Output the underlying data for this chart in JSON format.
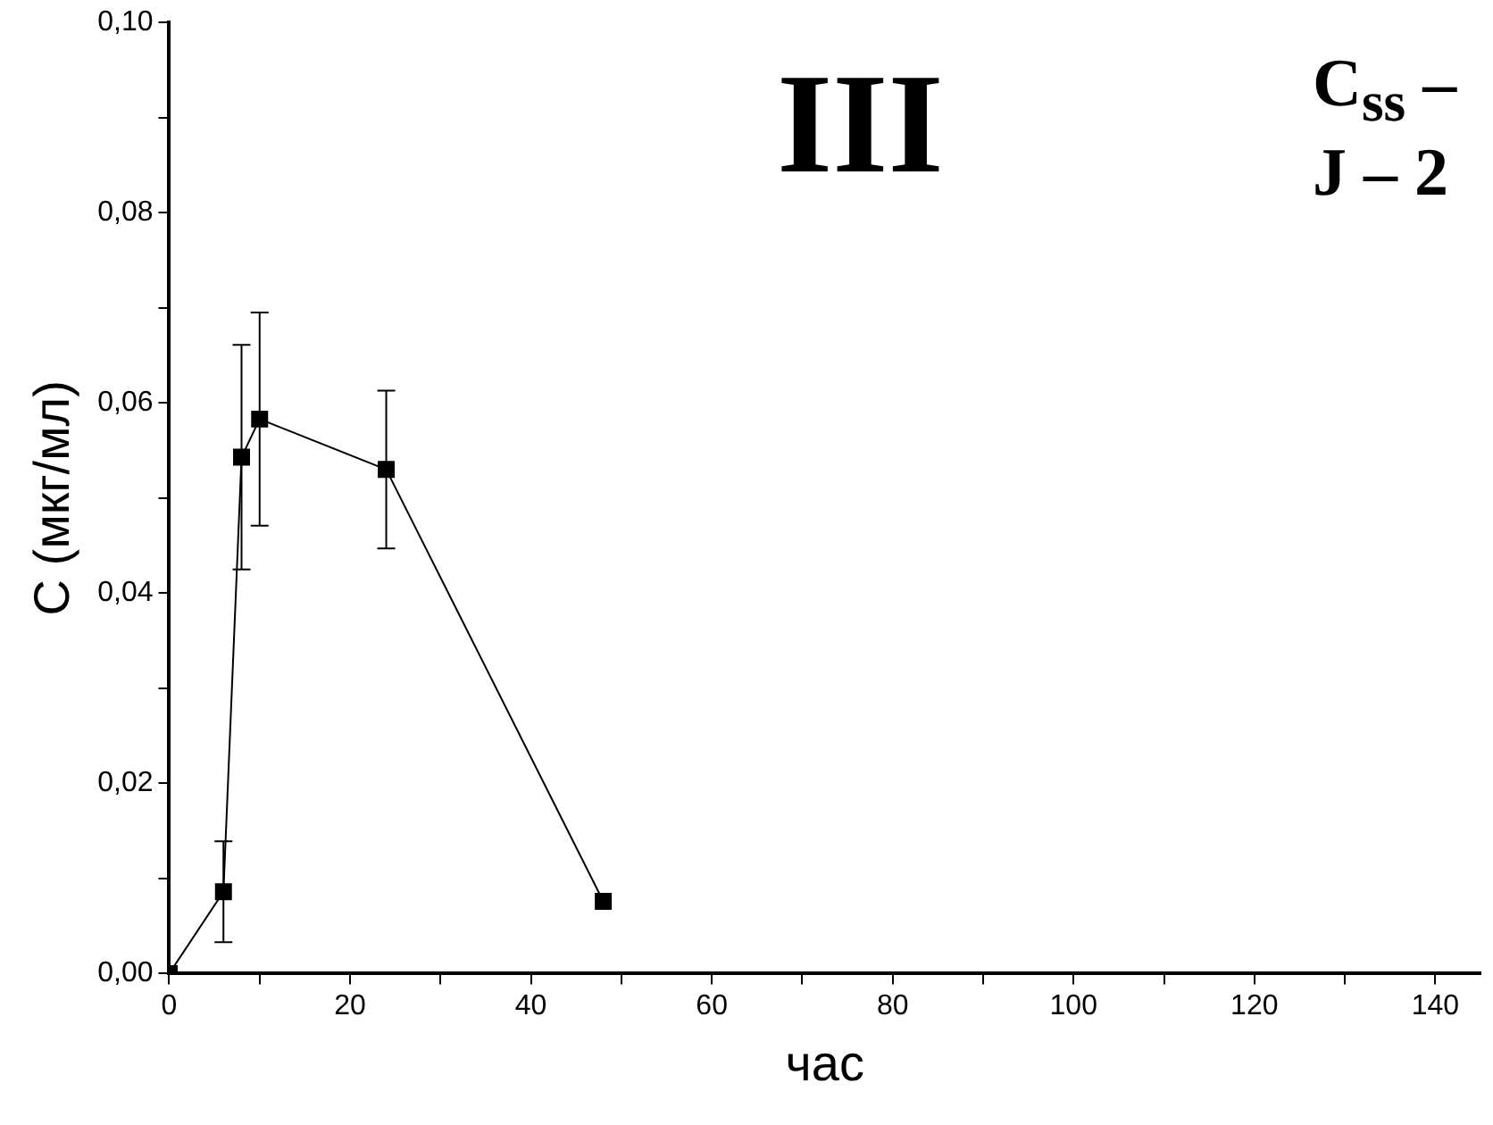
{
  "chart_data": {
    "type": "line",
    "xlabel": "час",
    "ylabel": "C (мкг/мл)",
    "annotations": [
      "III",
      "C$_{ss}$ –",
      "J – 2"
    ],
    "x": [
      0,
      6,
      8,
      10,
      24,
      48
    ],
    "series": [
      {
        "color": "#000000",
        "values": [
          0,
          0.0086,
          0.0543,
          0.0583,
          0.053,
          0.0076
        ],
        "errors": [
          null,
          0.0053,
          0.0118,
          0.0112,
          0.0083,
          null
        ]
      }
    ],
    "xlim": [
      0,
      145
    ],
    "xticks": [
      0,
      {
        "value": 10,
        "label": null
      },
      20,
      {
        "value": 30,
        "label": null
      },
      40,
      {
        "value": 50,
        "label": null
      },
      60,
      {
        "value": 70,
        "label": null
      },
      80,
      {
        "value": 90,
        "label": null
      },
      100,
      {
        "value": 110,
        "label": null
      },
      120,
      {
        "value": 130,
        "label": null
      },
      140
    ],
    "ylim": [
      0,
      0.1
    ],
    "yticks": [
      {
        "value": 0,
        "label": "0,00"
      },
      {
        "value": 0.01,
        "label": null
      },
      {
        "value": 0.02,
        "label": "0,02"
      },
      {
        "value": 0.03,
        "label": null
      },
      {
        "value": 0.04,
        "label": "0,04"
      },
      {
        "value": 0.05,
        "label": null
      },
      {
        "value": 0.06,
        "label": "0,06"
      },
      {
        "value": 0.07,
        "label": null
      },
      {
        "value": 0.08,
        "label": "0,08"
      },
      {
        "value": 0.09,
        "label": null
      },
      {
        "value": 0.1,
        "label": "0,10"
      }
    ],
    "grid": false,
    "legend": false,
    "marker": "square",
    "line_style": "solid"
  }
}
